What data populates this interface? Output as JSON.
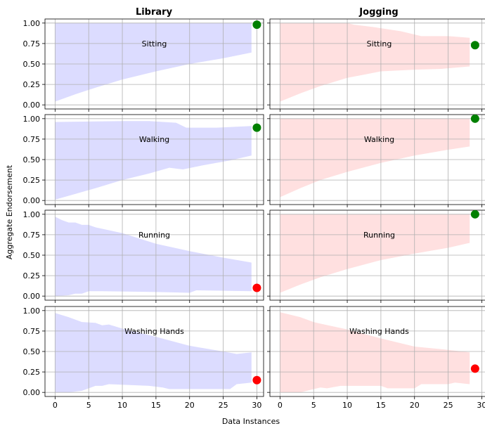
{
  "chart_data": {
    "type": "area",
    "layout": "4x2 grid of subplots with shared axes",
    "columns": [
      "Library",
      "Jogging"
    ],
    "xlabel": "Data Instances",
    "ylabel": "Aggregate Endorsement",
    "xlim": [
      -1.5,
      31
    ],
    "ylim": [
      -0.05,
      1.05
    ],
    "xticks": [
      0,
      5,
      10,
      15,
      20,
      25,
      30
    ],
    "yticks": [
      "0.00",
      "0.25",
      "0.50",
      "0.75",
      "1.00"
    ],
    "grid": true,
    "colors": {
      "Library": "#dcdcff",
      "Jogging": "#ffe0e0",
      "positive": "#008000",
      "negative": "#ff0000",
      "gridline": "#b0b0b0"
    },
    "panels": [
      {
        "column": "Library",
        "label": "Sitting",
        "band_x": [
          0,
          29.2
        ],
        "upper": [
          [
            0,
            1.0
          ],
          [
            29.2,
            1.0
          ]
        ],
        "lower": [
          [
            0,
            0.04
          ],
          [
            3,
            0.13
          ],
          [
            6,
            0.21
          ],
          [
            10,
            0.31
          ],
          [
            15,
            0.41
          ],
          [
            20,
            0.5
          ],
          [
            25,
            0.57
          ],
          [
            29.2,
            0.64
          ]
        ],
        "marker": {
          "x": 30,
          "y": 0.98,
          "color": "positive"
        }
      },
      {
        "column": "Jogging",
        "label": "Sitting",
        "band_x": [
          0,
          28.2
        ],
        "upper": [
          [
            0,
            1.0
          ],
          [
            10,
            1.0
          ],
          [
            11,
            0.98
          ],
          [
            14,
            0.95
          ],
          [
            18,
            0.9
          ],
          [
            21,
            0.84
          ],
          [
            25,
            0.84
          ],
          [
            28.2,
            0.82
          ]
        ],
        "lower": [
          [
            0,
            0.04
          ],
          [
            3,
            0.14
          ],
          [
            6,
            0.23
          ],
          [
            10,
            0.33
          ],
          [
            15,
            0.41
          ],
          [
            20,
            0.43
          ],
          [
            24,
            0.44
          ],
          [
            28.2,
            0.47
          ]
        ],
        "marker": {
          "x": 29,
          "y": 0.73,
          "color": "positive"
        }
      },
      {
        "column": "Library",
        "label": "Walking",
        "band_x": [
          0,
          29.2
        ],
        "upper": [
          [
            0,
            0.96
          ],
          [
            10,
            0.97
          ],
          [
            14,
            0.97
          ],
          [
            18,
            0.95
          ],
          [
            19.5,
            0.89
          ],
          [
            24,
            0.89
          ],
          [
            29.2,
            0.91
          ]
        ],
        "lower": [
          [
            0,
            0.01
          ],
          [
            3,
            0.08
          ],
          [
            6,
            0.15
          ],
          [
            10,
            0.25
          ],
          [
            14,
            0.33
          ],
          [
            17,
            0.4
          ],
          [
            19,
            0.38
          ],
          [
            22,
            0.43
          ],
          [
            26,
            0.49
          ],
          [
            29.2,
            0.55
          ]
        ],
        "marker": {
          "x": 30,
          "y": 0.89,
          "color": "positive"
        }
      },
      {
        "column": "Jogging",
        "label": "Walking",
        "band_x": [
          0,
          28.2
        ],
        "upper": [
          [
            0,
            1.0
          ],
          [
            28.2,
            1.0
          ]
        ],
        "lower": [
          [
            0,
            0.04
          ],
          [
            3,
            0.15
          ],
          [
            6,
            0.25
          ],
          [
            10,
            0.35
          ],
          [
            15,
            0.46
          ],
          [
            20,
            0.55
          ],
          [
            25,
            0.62
          ],
          [
            28.2,
            0.66
          ]
        ],
        "marker": {
          "x": 29,
          "y": 1.0,
          "color": "positive"
        }
      },
      {
        "column": "Library",
        "label": "Running",
        "band_x": [
          0,
          29.2
        ],
        "upper": [
          [
            0,
            0.97
          ],
          [
            1,
            0.93
          ],
          [
            2,
            0.9
          ],
          [
            3,
            0.9
          ],
          [
            4,
            0.87
          ],
          [
            5,
            0.87
          ],
          [
            6,
            0.84
          ],
          [
            10,
            0.77
          ],
          [
            15,
            0.64
          ],
          [
            20,
            0.55
          ],
          [
            25,
            0.47
          ],
          [
            29.2,
            0.41
          ]
        ],
        "lower": [
          [
            0,
            0.0
          ],
          [
            2,
            0.01
          ],
          [
            3,
            0.03
          ],
          [
            4,
            0.03
          ],
          [
            5,
            0.06
          ],
          [
            7,
            0.06
          ],
          [
            15,
            0.05
          ],
          [
            20,
            0.04
          ],
          [
            21,
            0.07
          ],
          [
            29.2,
            0.06
          ]
        ],
        "marker": {
          "x": 30,
          "y": 0.1,
          "color": "negative"
        }
      },
      {
        "column": "Jogging",
        "label": "Running",
        "band_x": [
          0,
          28.2
        ],
        "upper": [
          [
            0,
            1.0
          ],
          [
            28.2,
            1.0
          ]
        ],
        "lower": [
          [
            0,
            0.04
          ],
          [
            3,
            0.14
          ],
          [
            6,
            0.23
          ],
          [
            10,
            0.33
          ],
          [
            15,
            0.44
          ],
          [
            20,
            0.52
          ],
          [
            25,
            0.59
          ],
          [
            28.2,
            0.65
          ]
        ],
        "marker": {
          "x": 29,
          "y": 1.0,
          "color": "positive"
        }
      },
      {
        "column": "Library",
        "label": "Washing Hands",
        "band_x": [
          0,
          29.2
        ],
        "upper": [
          [
            0,
            0.97
          ],
          [
            2,
            0.92
          ],
          [
            4,
            0.86
          ],
          [
            6,
            0.85
          ],
          [
            7,
            0.82
          ],
          [
            8,
            0.83
          ],
          [
            10,
            0.78
          ],
          [
            15,
            0.68
          ],
          [
            20,
            0.57
          ],
          [
            25,
            0.5
          ],
          [
            27,
            0.47
          ],
          [
            29.2,
            0.49
          ]
        ],
        "lower": [
          [
            0,
            0.0
          ],
          [
            2,
            0.0
          ],
          [
            4,
            0.02
          ],
          [
            5,
            0.05
          ],
          [
            6,
            0.08
          ],
          [
            7,
            0.08
          ],
          [
            8,
            0.1
          ],
          [
            14,
            0.08
          ],
          [
            16,
            0.06
          ],
          [
            17,
            0.04
          ],
          [
            26,
            0.04
          ],
          [
            27,
            0.1
          ],
          [
            29.2,
            0.12
          ]
        ],
        "marker": {
          "x": 30,
          "y": 0.15,
          "color": "negative"
        }
      },
      {
        "column": "Jogging",
        "label": "Washing Hands",
        "band_x": [
          0,
          28.2
        ],
        "upper": [
          [
            0,
            0.98
          ],
          [
            3,
            0.92
          ],
          [
            5,
            0.86
          ],
          [
            6,
            0.84
          ],
          [
            10,
            0.77
          ],
          [
            15,
            0.66
          ],
          [
            20,
            0.56
          ],
          [
            25,
            0.52
          ],
          [
            28.2,
            0.49
          ]
        ],
        "lower": [
          [
            0,
            0.0
          ],
          [
            3,
            0.0
          ],
          [
            5,
            0.04
          ],
          [
            6,
            0.06
          ],
          [
            7,
            0.05
          ],
          [
            9,
            0.08
          ],
          [
            15,
            0.08
          ],
          [
            16,
            0.05
          ],
          [
            20,
            0.05
          ],
          [
            21,
            0.1
          ],
          [
            25,
            0.1
          ],
          [
            26,
            0.12
          ],
          [
            28.2,
            0.1
          ]
        ],
        "marker": {
          "x": 29,
          "y": 0.29,
          "color": "negative"
        }
      }
    ]
  }
}
